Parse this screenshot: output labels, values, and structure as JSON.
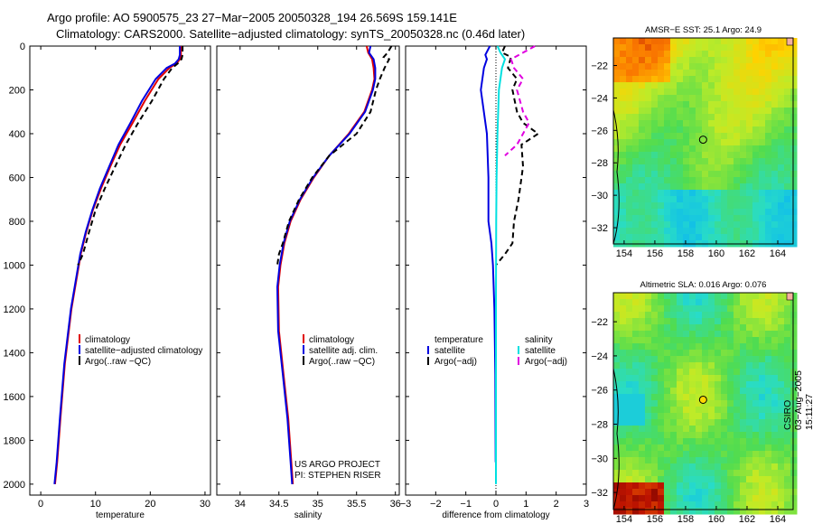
{
  "header": {
    "title_line1": "Argo profile: AO 5900575_23 27−Mar−2005 20050328_194 26.569S 159.141E",
    "title_line2": "Climatology: CARS2000. Satellite−adjusted climatology: synTS_20050328.nc (0.46d later)"
  },
  "side_label": "CSIRO 03−Aug−2005 15:11:27",
  "project_label": {
    "line1": "US ARGO PROJECT",
    "line2": "PI: STEPHEN RISER"
  },
  "colors": {
    "climatology": "#e00000",
    "satellite": "#0000e0",
    "argo": "#000000",
    "sal_sat": "#00e0e0",
    "sal_argo": "#e000e0"
  },
  "chart_data": [
    {
      "type": "line",
      "xlabel": "temperature",
      "ylabel": "",
      "xlim": [
        -2,
        31
      ],
      "ylim": [
        2050,
        0
      ],
      "xticks": [
        0,
        10,
        20,
        30
      ],
      "yticks": [
        0,
        200,
        400,
        600,
        800,
        1000,
        1200,
        1400,
        1600,
        1800,
        2000
      ],
      "legend": [
        "climatology",
        "satellite−adjusted climatology",
        "Argo(..raw −QC)"
      ],
      "series": [
        {
          "name": "climatology",
          "color": "#e00000",
          "dash": "",
          "x": [
            25.6,
            25.6,
            25.4,
            24.8,
            23.5,
            21.5,
            19.0,
            16.8,
            14.5,
            12.7,
            11.0,
            9.5,
            8.3,
            7.3,
            5.6,
            4.4,
            3.6,
            3.0,
            2.6
          ],
          "y": [
            0,
            40,
            60,
            80,
            100,
            150,
            250,
            350,
            450,
            550,
            650,
            750,
            850,
            950,
            1200,
            1450,
            1700,
            1900,
            2000
          ]
        },
        {
          "name": "satellite−adjusted climatology",
          "color": "#0000e0",
          "dash": "",
          "x": [
            25.4,
            25.4,
            25.2,
            24.5,
            23.0,
            21.0,
            18.5,
            16.4,
            14.2,
            12.5,
            10.8,
            9.4,
            8.2,
            7.2,
            5.5,
            4.3,
            3.5,
            2.9,
            2.5
          ],
          "y": [
            0,
            40,
            60,
            80,
            100,
            150,
            250,
            350,
            450,
            550,
            650,
            750,
            850,
            950,
            1200,
            1450,
            1700,
            1900,
            2000
          ]
        },
        {
          "name": "Argo(..raw −QC)",
          "color": "#000000",
          "dash": "6,4",
          "x": [
            25.9,
            25.9,
            25.7,
            25.0,
            24.0,
            22.5,
            20.3,
            17.8,
            15.5,
            13.6,
            11.7,
            10.0,
            8.8,
            7.7,
            6.8
          ],
          "y": [
            0,
            40,
            60,
            80,
            100,
            150,
            250,
            350,
            450,
            550,
            650,
            750,
            850,
            950,
            1000
          ]
        }
      ]
    },
    {
      "type": "line",
      "xlabel": "salinity",
      "ylabel": "",
      "xlim": [
        33.7,
        36.05
      ],
      "ylim": [
        2050,
        0
      ],
      "xticks": [
        34,
        34.5,
        35,
        35.5,
        36
      ],
      "legend": [
        "climatology",
        "satellite adj. clim.",
        "Argo(..raw −QC)"
      ],
      "series": [
        {
          "name": "climatology",
          "color": "#e00000",
          "dash": "",
          "x": [
            35.63,
            35.65,
            35.7,
            35.72,
            35.73,
            35.7,
            35.6,
            35.4,
            35.15,
            34.95,
            34.78,
            34.65,
            34.57,
            34.52,
            34.49,
            34.5,
            34.56,
            34.62,
            34.66,
            34.68
          ],
          "y": [
            0,
            30,
            60,
            100,
            150,
            200,
            300,
            400,
            500,
            600,
            700,
            800,
            900,
            1000,
            1100,
            1300,
            1500,
            1700,
            1900,
            2000
          ]
        },
        {
          "name": "satellite adj. clim.",
          "color": "#0000e0",
          "dash": "",
          "x": [
            35.68,
            35.66,
            35.72,
            35.74,
            35.74,
            35.71,
            35.61,
            35.41,
            35.15,
            34.94,
            34.77,
            34.64,
            34.56,
            34.51,
            34.48,
            34.49,
            34.55,
            34.61,
            34.65,
            34.67
          ],
          "y": [
            0,
            30,
            60,
            100,
            150,
            200,
            300,
            400,
            500,
            600,
            700,
            800,
            900,
            1000,
            1100,
            1300,
            1500,
            1700,
            1900,
            2000
          ]
        },
        {
          "name": "Argo(..raw −QC)",
          "color": "#000000",
          "dash": "6,4",
          "x": [
            35.95,
            35.9,
            35.85,
            35.92,
            35.86,
            35.8,
            35.75,
            35.68,
            35.5,
            35.15,
            34.93,
            34.76,
            34.63,
            34.55,
            34.5,
            34.48
          ],
          "y": [
            0,
            30,
            50,
            60,
            100,
            150,
            200,
            300,
            400,
            500,
            600,
            700,
            800,
            900,
            950,
            1000
          ]
        }
      ]
    },
    {
      "type": "line",
      "xlabel": "difference from climatology",
      "ylabel": "",
      "xlim": [
        -3,
        3
      ],
      "ylim": [
        2050,
        0
      ],
      "xticks": [
        -3,
        -2,
        -1,
        0,
        1,
        2,
        3
      ],
      "legend": [
        "temperature",
        "satellite",
        "Argo(−adj)",
        "salinity",
        "satellite",
        "Argo(−adj)"
      ],
      "series": [
        {
          "name": "satellite",
          "color": "#0000e0",
          "dash": "",
          "x": [
            -0.2,
            -0.35,
            -0.3,
            -0.4,
            -0.5,
            -0.3,
            -0.25,
            -0.25,
            -0.15,
            -0.1,
            -0.05,
            -0.02,
            -0.01
          ],
          "y": [
            0,
            40,
            60,
            100,
            200,
            400,
            600,
            800,
            900,
            1000,
            1200,
            1500,
            1900
          ]
        },
        {
          "name": "Argo(−adj)",
          "color": "#000000",
          "dash": "6,4",
          "x": [
            0.3,
            0.2,
            0.5,
            0.4,
            0.7,
            0.55,
            0.7,
            0.9,
            1.4,
            0.85,
            0.9,
            0.75,
            0.6,
            0.55,
            0.3,
            0.0
          ],
          "y": [
            0,
            30,
            50,
            100,
            150,
            200,
            300,
            350,
            400,
            450,
            550,
            700,
            800,
            900,
            950,
            1000
          ]
        },
        {
          "name": "satellite",
          "color": "#00e0e0",
          "dash": "",
          "x": [
            0.05,
            0.15,
            0.3,
            0.2,
            0.1,
            0.05,
            0.02,
            0.01,
            0.0,
            0.0
          ],
          "y": [
            0,
            30,
            60,
            100,
            200,
            400,
            600,
            800,
            1200,
            2000
          ]
        },
        {
          "name": "Argo(−adj)",
          "color": "#e000e0",
          "dash": "6,4",
          "x": [
            1.3,
            0.9,
            0.5,
            0.6,
            0.9,
            0.7,
            0.9,
            1.1,
            0.7,
            0.3
          ],
          "y": [
            0,
            30,
            60,
            100,
            150,
            200,
            300,
            350,
            450,
            500
          ]
        }
      ]
    },
    {
      "type": "heatmap",
      "title": "AMSR−E SST: 25.1 Argo: 24.9",
      "xlim": [
        153.3,
        165
      ],
      "ylim": [
        -33,
        -20.3
      ],
      "xticks": [
        154,
        156,
        158,
        160,
        162,
        164
      ],
      "yticks": [
        -22,
        -24,
        -26,
        -28,
        -30,
        -32
      ],
      "marker": [
        159.14,
        -26.57
      ]
    },
    {
      "type": "heatmap",
      "title": "Altimetric SLA: 0.016 Argo: 0.076",
      "xlim": [
        153.3,
        165
      ],
      "ylim": [
        -33,
        -20.3
      ],
      "xticks": [
        154,
        156,
        158,
        160,
        162,
        164
      ],
      "yticks": [
        -22,
        -24,
        -26,
        -28,
        -30,
        -32
      ],
      "marker": [
        159.14,
        -26.57
      ]
    }
  ]
}
